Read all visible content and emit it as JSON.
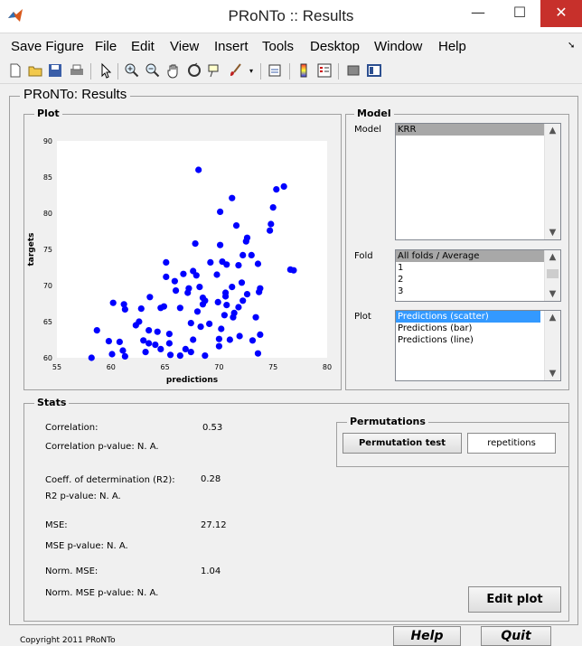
{
  "window": {
    "title": "PRoNTo :: Results",
    "minimize": "—",
    "maximize": "☐",
    "close": "✕"
  },
  "menu": [
    "Save Figure",
    "File",
    "Edit",
    "View",
    "Insert",
    "Tools",
    "Desktop",
    "Window",
    "Help"
  ],
  "toolbar_icons": [
    "new-file-icon",
    "open-folder-icon",
    "save-icon",
    "print-icon",
    "pointer-icon",
    "zoom-in-icon",
    "zoom-out-icon",
    "pan-hand-icon",
    "rotate-3d-icon",
    "data-cursor-icon",
    "brush-icon",
    "link-icon",
    "colorbar-icon",
    "legend-icon",
    "hide-plot-tools-icon",
    "show-plot-tools-icon"
  ],
  "panel": {
    "title": "PRoNTo: Results",
    "plot_group": "Plot",
    "model_group": "Model",
    "stats_group": "Stats",
    "permutations_group": "Permutations"
  },
  "model": {
    "model_label": "Model",
    "model_items": [
      "KRR"
    ],
    "fold_label": "Fold",
    "fold_items": [
      "All folds / Average",
      "1",
      "2",
      "3"
    ],
    "plot_label": "Plot",
    "plot_items": [
      "Predictions (scatter)",
      "Predictions (bar)",
      "Predictions (line)"
    ]
  },
  "stats": {
    "correlation_label": "Correlation:",
    "correlation_value": "0.53",
    "correlation_p": "Correlation p-value: N. A.",
    "r2_label": "Coeff. of determination (R2):",
    "r2_value": "0.28",
    "r2_p": "R2 p-value: N. A.",
    "mse_label": "MSE:",
    "mse_value": "27.12",
    "mse_p": "MSE p-value: N. A.",
    "nmse_label": "Norm. MSE:",
    "nmse_value": "1.04",
    "nmse_p": "Norm. MSE p-value: N. A."
  },
  "buttons": {
    "permutation_test": "Permutation test",
    "repetitions": "repetitions",
    "edit_plot": "Edit plot",
    "help": "Help",
    "quit": "Quit"
  },
  "footer": "Copyright 2011 PRoNTo",
  "colors": {
    "point": "#0000ff",
    "close_button": "#c7302b"
  },
  "chart_data": {
    "type": "scatter",
    "xlabel": "predictions",
    "ylabel": "targets",
    "xlim": [
      55,
      80
    ],
    "ylim": [
      60,
      90
    ],
    "xticks": [
      55,
      60,
      65,
      70,
      75,
      80
    ],
    "yticks": [
      60,
      65,
      70,
      75,
      80,
      85,
      90
    ],
    "grid": false,
    "points": [
      [
        58.2,
        60.0
      ],
      [
        58.7,
        63.8
      ],
      [
        59.8,
        62.3
      ],
      [
        60.1,
        60.5
      ],
      [
        60.2,
        67.6
      ],
      [
        60.8,
        62.2
      ],
      [
        61.1,
        61.0
      ],
      [
        61.2,
        67.4
      ],
      [
        61.3,
        60.2
      ],
      [
        61.3,
        66.7
      ],
      [
        62.3,
        64.5
      ],
      [
        62.6,
        65.0
      ],
      [
        62.8,
        66.8
      ],
      [
        63.0,
        62.4
      ],
      [
        63.2,
        60.8
      ],
      [
        63.5,
        63.8
      ],
      [
        63.5,
        62.0
      ],
      [
        63.6,
        68.4
      ],
      [
        64.1,
        61.8
      ],
      [
        64.3,
        63.6
      ],
      [
        64.6,
        66.9
      ],
      [
        64.6,
        61.2
      ],
      [
        64.9,
        67.1
      ],
      [
        65.1,
        73.2
      ],
      [
        65.1,
        71.2
      ],
      [
        65.4,
        63.3
      ],
      [
        65.4,
        62.0
      ],
      [
        65.5,
        60.4
      ],
      [
        65.9,
        70.6
      ],
      [
        66.0,
        69.3
      ],
      [
        66.4,
        60.3
      ],
      [
        66.4,
        66.9
      ],
      [
        66.7,
        71.6
      ],
      [
        66.9,
        61.2
      ],
      [
        67.1,
        69.0
      ],
      [
        67.2,
        69.6
      ],
      [
        67.4,
        64.8
      ],
      [
        67.4,
        60.8
      ],
      [
        67.6,
        72.0
      ],
      [
        67.6,
        62.5
      ],
      [
        67.8,
        75.8
      ],
      [
        67.9,
        71.4
      ],
      [
        68.0,
        66.4
      ],
      [
        68.1,
        86.0
      ],
      [
        68.2,
        69.8
      ],
      [
        68.3,
        64.3
      ],
      [
        68.5,
        68.3
      ],
      [
        68.5,
        67.4
      ],
      [
        68.7,
        60.3
      ],
      [
        68.7,
        67.9
      ],
      [
        69.1,
        64.7
      ],
      [
        69.2,
        73.2
      ],
      [
        69.8,
        71.5
      ],
      [
        69.9,
        67.7
      ],
      [
        70.0,
        61.6
      ],
      [
        70.0,
        62.6
      ],
      [
        70.1,
        75.6
      ],
      [
        70.1,
        80.2
      ],
      [
        70.2,
        64.0
      ],
      [
        70.3,
        73.3
      ],
      [
        70.5,
        65.9
      ],
      [
        70.6,
        68.5
      ],
      [
        70.6,
        69.0
      ],
      [
        70.7,
        67.3
      ],
      [
        70.7,
        72.9
      ],
      [
        71.0,
        62.5
      ],
      [
        71.2,
        82.1
      ],
      [
        71.2,
        69.8
      ],
      [
        71.3,
        65.6
      ],
      [
        71.4,
        66.2
      ],
      [
        71.6,
        78.3
      ],
      [
        71.8,
        72.8
      ],
      [
        71.8,
        67.0
      ],
      [
        71.9,
        63.0
      ],
      [
        72.1,
        70.4
      ],
      [
        72.2,
        74.2
      ],
      [
        72.2,
        67.9
      ],
      [
        72.5,
        76.1
      ],
      [
        72.6,
        76.6
      ],
      [
        72.6,
        68.8
      ],
      [
        73.0,
        74.2
      ],
      [
        73.1,
        62.4
      ],
      [
        73.4,
        65.6
      ],
      [
        73.6,
        73.0
      ],
      [
        73.6,
        60.6
      ],
      [
        73.7,
        69.1
      ],
      [
        73.8,
        69.6
      ],
      [
        73.8,
        63.2
      ],
      [
        74.7,
        77.6
      ],
      [
        74.8,
        78.5
      ],
      [
        75.0,
        80.8
      ],
      [
        75.3,
        83.3
      ],
      [
        76.0,
        83.7
      ],
      [
        76.6,
        72.2
      ],
      [
        76.9,
        72.1
      ]
    ]
  }
}
